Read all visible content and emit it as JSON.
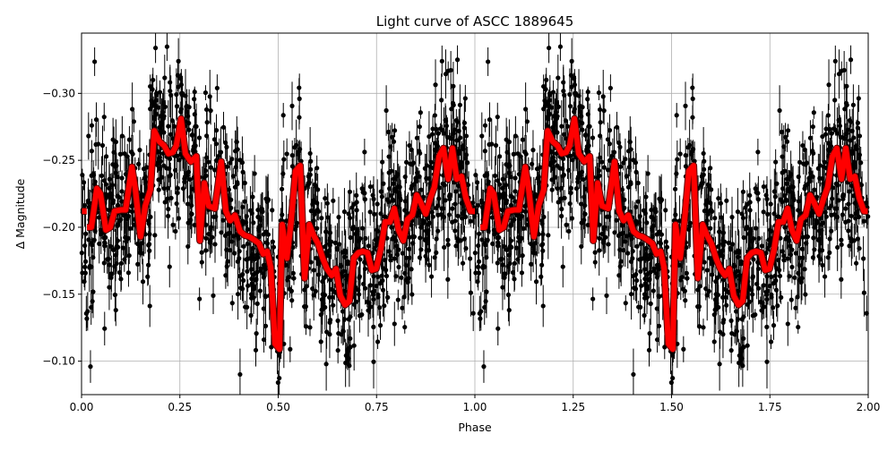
{
  "chart_data": {
    "type": "scatter",
    "title": "Light curve of ASCC 1889645",
    "xlabel": "Phase",
    "ylabel": "Δ Magnitude",
    "xlim": [
      0,
      2
    ],
    "ylim": [
      -0.345,
      -0.075
    ],
    "y_inverted": true,
    "grid": true,
    "x_ticks": [
      "0.00",
      "0.25",
      "0.50",
      "0.75",
      "1.00",
      "1.25",
      "1.50",
      "1.75",
      "2.00"
    ],
    "y_ticks": [
      "−0.30",
      "−0.25",
      "−0.20",
      "−0.15",
      "−0.10"
    ],
    "x_tick_values": [
      0,
      0.25,
      0.5,
      0.75,
      1,
      1.25,
      1.5,
      1.75,
      2
    ],
    "y_tick_values": [
      -0.3,
      -0.25,
      -0.2,
      -0.15,
      -0.1
    ],
    "observations": {
      "marker_color": "#000000",
      "error_bars": true,
      "scatter_sigma": 0.04
    },
    "binned_curve": {
      "color": "#ff0000",
      "repeated_each_cycle": true,
      "x": [
        0.014,
        0.025,
        0.039,
        0.048,
        0.062,
        0.073,
        0.084,
        0.1,
        0.112,
        0.128,
        0.137,
        0.15,
        0.162,
        0.175,
        0.185,
        0.198,
        0.21,
        0.221,
        0.232,
        0.241,
        0.253,
        0.264,
        0.278,
        0.292,
        0.301,
        0.312,
        0.323,
        0.339,
        0.355,
        0.367,
        0.378,
        0.39,
        0.403,
        0.415,
        0.426,
        0.437,
        0.451,
        0.462,
        0.472,
        0.481,
        0.492,
        0.503,
        0.51,
        0.522,
        0.533,
        0.544,
        0.556,
        0.567,
        0.579,
        0.59,
        0.601,
        0.613,
        0.624,
        0.636,
        0.647,
        0.658,
        0.67,
        0.681,
        0.692,
        0.704,
        0.715,
        0.727,
        0.738,
        0.749,
        0.761,
        0.772,
        0.784,
        0.795,
        0.806,
        0.818,
        0.829,
        0.841,
        0.852,
        0.863,
        0.875,
        0.886,
        0.897,
        0.909,
        0.92,
        0.932,
        0.943,
        0.954,
        0.966,
        0.977,
        0.989,
        1.0
      ],
      "y": [
        -0.2,
        -0.2,
        -0.229,
        -0.225,
        -0.198,
        -0.2,
        -0.212,
        -0.213,
        -0.213,
        -0.245,
        -0.228,
        -0.193,
        -0.216,
        -0.228,
        -0.272,
        -0.264,
        -0.261,
        -0.255,
        -0.256,
        -0.261,
        -0.281,
        -0.255,
        -0.249,
        -0.253,
        -0.19,
        -0.233,
        -0.216,
        -0.214,
        -0.249,
        -0.212,
        -0.205,
        -0.209,
        -0.197,
        -0.194,
        -0.193,
        -0.191,
        -0.188,
        -0.18,
        -0.182,
        -0.17,
        -0.113,
        -0.109,
        -0.202,
        -0.177,
        -0.205,
        -0.242,
        -0.246,
        -0.162,
        -0.202,
        -0.194,
        -0.188,
        -0.177,
        -0.169,
        -0.164,
        -0.169,
        -0.149,
        -0.142,
        -0.145,
        -0.177,
        -0.181,
        -0.182,
        -0.181,
        -0.168,
        -0.169,
        -0.184,
        -0.204,
        -0.204,
        -0.214,
        -0.198,
        -0.19,
        -0.206,
        -0.209,
        -0.224,
        -0.218,
        -0.21,
        -0.221,
        -0.23,
        -0.253,
        -0.259,
        -0.236,
        -0.259,
        -0.236,
        -0.238,
        -0.222,
        -0.212,
        -0.212
      ]
    },
    "wrap_segment": {
      "x": [
        0.0,
        0.013
      ],
      "y": [
        -0.212,
        -0.212
      ]
    }
  }
}
